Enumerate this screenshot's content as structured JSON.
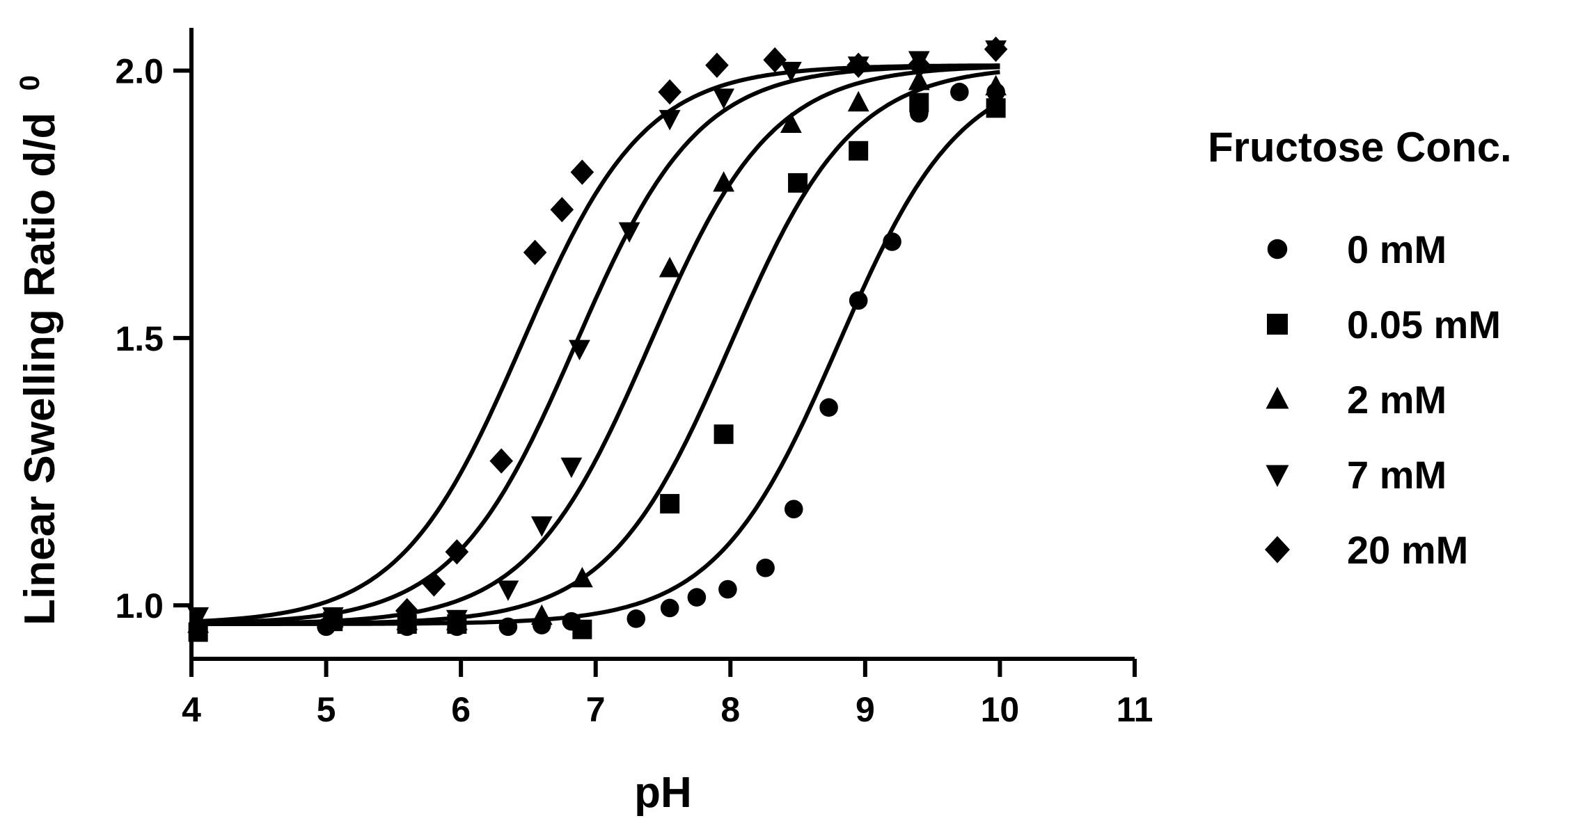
{
  "chart_data": {
    "type": "scatter",
    "xlabel": "pH",
    "ylabel": "Linear Swelling Ratio d/d",
    "ylabel_subscript": "0",
    "xlim": [
      4,
      11
    ],
    "ylim": [
      0.9,
      2.08
    ],
    "xticks": [
      4,
      5,
      6,
      7,
      8,
      9,
      10,
      11
    ],
    "yticks": [
      1.0,
      1.5,
      2.0
    ],
    "ytick_labels": [
      "1.0",
      "1.5",
      "2.0"
    ],
    "grid": false,
    "legend": {
      "title": "Fructose Conc.",
      "position": "right"
    },
    "fit_curves": true,
    "colors": {
      "marks": "#000000",
      "background": "#ffffff"
    },
    "series": [
      {
        "name": "0 mM",
        "marker": "circle",
        "fit": {
          "bottom": 0.965,
          "top": 2.01,
          "midpoint": 8.8,
          "slope": 2.2
        },
        "points": [
          [
            4.05,
            0.96
          ],
          [
            5.0,
            0.96
          ],
          [
            5.6,
            0.96
          ],
          [
            5.97,
            0.96
          ],
          [
            6.35,
            0.96
          ],
          [
            6.6,
            0.963
          ],
          [
            6.82,
            0.97
          ],
          [
            7.3,
            0.975
          ],
          [
            7.55,
            0.995
          ],
          [
            7.75,
            1.015
          ],
          [
            7.98,
            1.03
          ],
          [
            8.26,
            1.07
          ],
          [
            8.47,
            1.18
          ],
          [
            8.73,
            1.37
          ],
          [
            8.95,
            1.57
          ],
          [
            9.2,
            1.68
          ],
          [
            9.4,
            1.92
          ],
          [
            9.7,
            1.96
          ],
          [
            9.97,
            1.96
          ]
        ]
      },
      {
        "name": "0.05 mM",
        "marker": "square",
        "fit": {
          "bottom": 0.965,
          "top": 2.01,
          "midpoint": 8.0,
          "slope": 2.2
        },
        "points": [
          [
            4.05,
            0.95
          ],
          [
            5.05,
            0.97
          ],
          [
            5.6,
            0.965
          ],
          [
            5.97,
            0.965
          ],
          [
            6.9,
            0.955
          ],
          [
            7.55,
            1.19
          ],
          [
            7.95,
            1.32
          ],
          [
            8.5,
            1.79
          ],
          [
            8.95,
            1.85
          ],
          [
            9.4,
            1.94
          ],
          [
            9.97,
            1.93
          ]
        ]
      },
      {
        "name": "2 mM",
        "marker": "triangle-up",
        "fit": {
          "bottom": 0.965,
          "top": 2.01,
          "midpoint": 7.4,
          "slope": 2.2
        },
        "points": [
          [
            4.05,
            0.965
          ],
          [
            5.05,
            0.975
          ],
          [
            5.6,
            0.97
          ],
          [
            5.97,
            0.97
          ],
          [
            6.6,
            0.98
          ],
          [
            6.9,
            1.05
          ],
          [
            7.55,
            1.63
          ],
          [
            7.95,
            1.79
          ],
          [
            8.45,
            1.9
          ],
          [
            8.95,
            1.94
          ],
          [
            9.4,
            1.98
          ],
          [
            9.97,
            1.97
          ]
        ]
      },
      {
        "name": "7 mM",
        "marker": "triangle-down",
        "fit": {
          "bottom": 0.965,
          "top": 2.01,
          "midpoint": 6.85,
          "slope": 2.2
        },
        "points": [
          [
            4.05,
            0.98
          ],
          [
            5.05,
            0.98
          ],
          [
            5.6,
            0.975
          ],
          [
            5.97,
            0.975
          ],
          [
            6.35,
            1.03
          ],
          [
            6.6,
            1.15
          ],
          [
            6.82,
            1.26
          ],
          [
            6.88,
            1.48
          ],
          [
            7.25,
            1.7
          ],
          [
            7.55,
            1.91
          ],
          [
            7.95,
            1.95
          ],
          [
            8.45,
            2.0
          ],
          [
            8.95,
            2.01
          ],
          [
            9.4,
            2.02
          ],
          [
            9.97,
            2.04
          ]
        ]
      },
      {
        "name": "20 mM",
        "marker": "diamond",
        "fit": {
          "bottom": 0.965,
          "top": 2.01,
          "midpoint": 6.45,
          "slope": 2.2
        },
        "points": [
          [
            5.6,
            0.99
          ],
          [
            5.8,
            1.04
          ],
          [
            5.97,
            1.1
          ],
          [
            6.3,
            1.27
          ],
          [
            6.55,
            1.66
          ],
          [
            6.75,
            1.74
          ],
          [
            6.9,
            1.81
          ],
          [
            7.55,
            1.96
          ],
          [
            7.9,
            2.01
          ],
          [
            8.33,
            2.02
          ],
          [
            8.95,
            2.01
          ],
          [
            9.4,
            2.01
          ],
          [
            9.97,
            2.04
          ]
        ]
      }
    ]
  }
}
